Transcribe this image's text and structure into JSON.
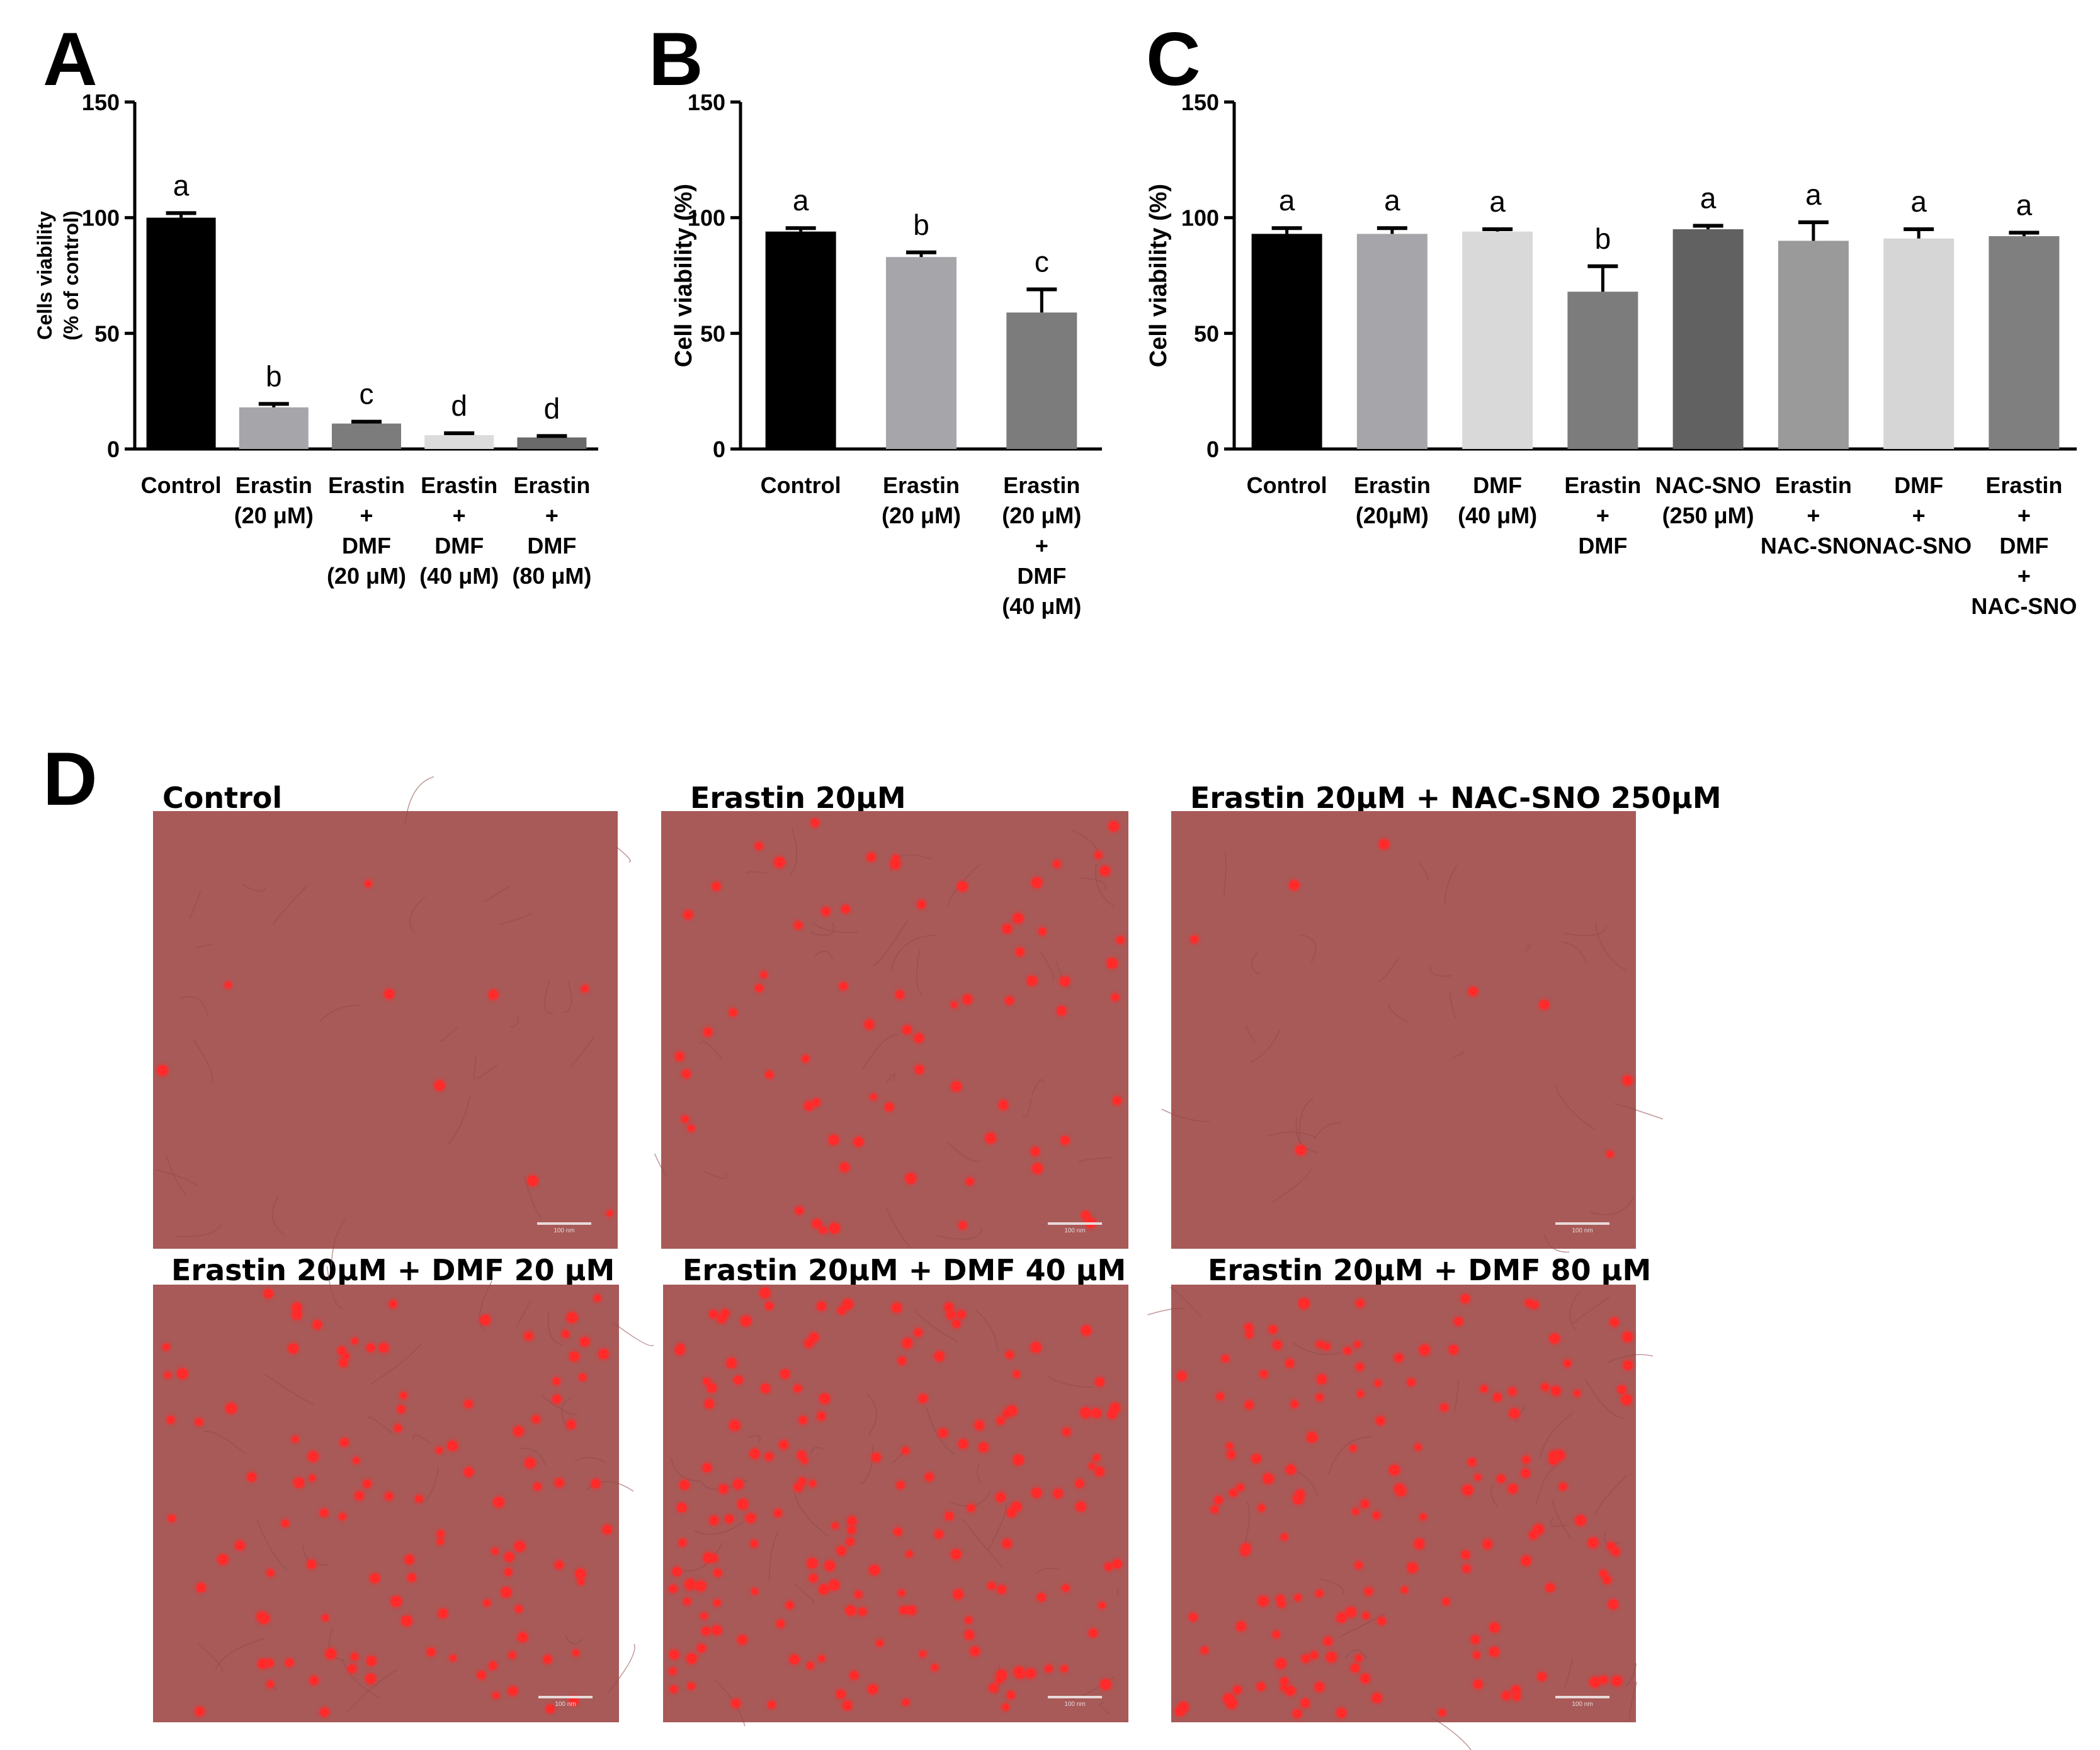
{
  "panel_letters": [
    "A",
    "B",
    "C",
    "D"
  ],
  "chart_data": [
    {
      "type": "bar",
      "panel": "A",
      "ylabel": [
        "Cells viability",
        "(% of control)"
      ],
      "ylim": [
        0,
        150
      ],
      "yticks": [
        0,
        50,
        100,
        150
      ],
      "categories": [
        [
          "Control"
        ],
        [
          "Erastin",
          "(20 μM)"
        ],
        [
          "Erastin",
          "+",
          "DMF",
          "(20 μM)"
        ],
        [
          "Erastin",
          "+",
          "DMF",
          "(40 μM)"
        ],
        [
          "Erastin",
          "+",
          "DMF",
          "(80 μM)"
        ]
      ],
      "values": [
        100,
        18,
        11,
        6,
        5
      ],
      "errors": [
        2,
        1.5,
        0.8,
        0.8,
        0.6
      ],
      "letters": [
        "a",
        "b",
        "c",
        "d",
        "d"
      ],
      "colors": [
        "#000000",
        "#a6a6aa",
        "#7c7c7c",
        "#dcdcdc",
        "#6a6a6a"
      ]
    },
    {
      "type": "bar",
      "panel": "B",
      "ylabel": [
        "Cell viability (%)"
      ],
      "ylim": [
        0,
        150
      ],
      "yticks": [
        0,
        50,
        100,
        150
      ],
      "categories": [
        [
          "Control"
        ],
        [
          "Erastin",
          "(20 μM)"
        ],
        [
          "Erastin",
          "(20 μM)",
          "+",
          "DMF",
          "(40 μM)"
        ]
      ],
      "values": [
        94,
        83,
        59
      ],
      "errors": [
        1.5,
        2,
        10
      ],
      "letters": [
        "a",
        "b",
        "c"
      ],
      "colors": [
        "#000000",
        "#a6a6aa",
        "#7c7c7c"
      ]
    },
    {
      "type": "bar",
      "panel": "C",
      "ylabel": [
        "Cell viability (%)"
      ],
      "ylim": [
        0,
        150
      ],
      "yticks": [
        0,
        50,
        100,
        150
      ],
      "categories": [
        [
          "Control"
        ],
        [
          "Erastin",
          "(20μM)"
        ],
        [
          "DMF",
          "(40 μM)"
        ],
        [
          "Erastin",
          "+",
          "DMF"
        ],
        [
          "NAC-SNO",
          "(250 μM)"
        ],
        [
          "Erastin",
          "+",
          "NAC-SNO"
        ],
        [
          "DMF",
          "+",
          "NAC-SNO"
        ],
        [
          "Erastin",
          "+",
          "DMF",
          "+",
          "NAC-SNO"
        ]
      ],
      "values": [
        93,
        93,
        94,
        68,
        95,
        90,
        91,
        92
      ],
      "errors": [
        2.5,
        2.5,
        1,
        11,
        1.5,
        8,
        4,
        1.5
      ],
      "letters": [
        "a",
        "a",
        "a",
        "b",
        "a",
        "a",
        "a",
        "a"
      ],
      "colors": [
        "#000000",
        "#a6a6aa",
        "#d9d9d9",
        "#7c7c7c",
        "#616161",
        "#9a9a9a",
        "#d6d6d6",
        "#7f7f7f"
      ]
    }
  ],
  "micrographs": {
    "panel": "D",
    "images": [
      {
        "title": "Control",
        "red_cells": 9
      },
      {
        "title": "Erastin 20μM",
        "red_cells": 70
      },
      {
        "title": "Erastin 20μM + NAC-SNO 250μM",
        "red_cells": 8
      },
      {
        "title": "Erastin 20μM + DMF 20 μM",
        "red_cells": 110
      },
      {
        "title": "Erastin 20μM + DMF 40 μM",
        "red_cells": 170
      },
      {
        "title": "Erastin 20μM + DMF 80 μM",
        "red_cells": 150
      }
    ],
    "scale_bar_label": "100 nm",
    "background_color": "#a85a58",
    "cell_color": "#ff2a2a"
  }
}
